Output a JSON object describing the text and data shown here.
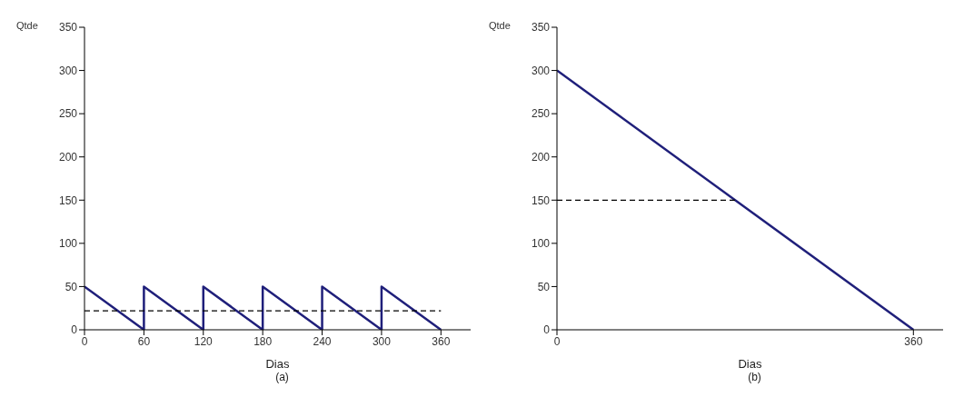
{
  "chart_data": [
    {
      "type": "line",
      "ylabel": "Qtde",
      "xlabel": "Dias",
      "annotations": [
        "(a)"
      ],
      "xlim": [
        0,
        390
      ],
      "xticks": [
        0,
        60,
        120,
        180,
        240,
        300,
        360
      ],
      "ylim": [
        0,
        350
      ],
      "yticks": [
        0,
        50,
        100,
        150,
        200,
        250,
        300,
        350
      ],
      "grid": false,
      "legend": false,
      "series": [
        {
          "color": "#1f1f7a",
          "line_style": "solid",
          "x": [
            0,
            60,
            60,
            120,
            120,
            180,
            180,
            240,
            240,
            300,
            300,
            360
          ],
          "values": [
            50,
            0,
            50,
            0,
            50,
            0,
            50,
            0,
            50,
            0,
            50,
            0
          ]
        },
        {
          "color": "#000000",
          "line_style": "dashed",
          "x": [
            0,
            360
          ],
          "values": [
            22,
            22
          ]
        }
      ]
    },
    {
      "type": "line",
      "ylabel": "Qtde",
      "xlabel": "Dias",
      "annotations": [
        "(b)"
      ],
      "xlim": [
        0,
        390
      ],
      "xticks": [
        0,
        360
      ],
      "ylim": [
        0,
        350
      ],
      "yticks": [
        0,
        50,
        100,
        150,
        200,
        250,
        300,
        350
      ],
      "grid": false,
      "legend": false,
      "series": [
        {
          "color": "#1f1f7a",
          "line_style": "solid",
          "x": [
            0,
            360
          ],
          "values": [
            300,
            0
          ]
        },
        {
          "color": "#000000",
          "line_style": "dashed",
          "x": [
            0,
            180
          ],
          "values": [
            150,
            150
          ]
        }
      ]
    }
  ]
}
